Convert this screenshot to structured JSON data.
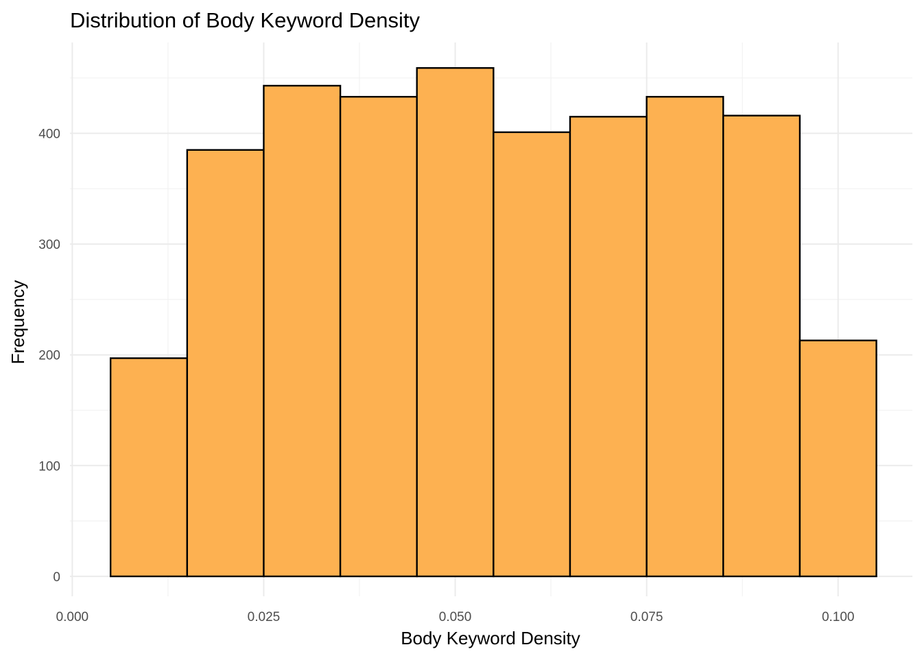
{
  "chart_data": {
    "type": "bar",
    "title": "Distribution of Body Keyword Density",
    "xlabel": "Body Keyword Density",
    "ylabel": "Frequency",
    "bar_color": "#FDB151",
    "bar_outline": "#000000",
    "grid": true,
    "xlim": [
      -0.0003,
      0.1097
    ],
    "ylim": [
      -18,
      482
    ],
    "x_ticks": [
      {
        "value": 0.0,
        "label": "0.000"
      },
      {
        "value": 0.025,
        "label": "0.025"
      },
      {
        "value": 0.05,
        "label": "0.050"
      },
      {
        "value": 0.075,
        "label": "0.075"
      },
      {
        "value": 0.1,
        "label": "0.100"
      }
    ],
    "y_ticks": [
      {
        "value": 0,
        "label": "0"
      },
      {
        "value": 100,
        "label": "100"
      },
      {
        "value": 200,
        "label": "200"
      },
      {
        "value": 300,
        "label": "300"
      },
      {
        "value": 400,
        "label": "400"
      }
    ],
    "bins": [
      {
        "x0": 0.005,
        "x1": 0.015,
        "count": 197
      },
      {
        "x0": 0.015,
        "x1": 0.025,
        "count": 385
      },
      {
        "x0": 0.025,
        "x1": 0.035,
        "count": 443
      },
      {
        "x0": 0.035,
        "x1": 0.045,
        "count": 433
      },
      {
        "x0": 0.045,
        "x1": 0.055,
        "count": 459
      },
      {
        "x0": 0.055,
        "x1": 0.065,
        "count": 401
      },
      {
        "x0": 0.065,
        "x1": 0.075,
        "count": 415
      },
      {
        "x0": 0.075,
        "x1": 0.085,
        "count": 433
      },
      {
        "x0": 0.085,
        "x1": 0.095,
        "count": 416
      },
      {
        "x0": 0.095,
        "x1": 0.105,
        "count": 213
      }
    ]
  }
}
